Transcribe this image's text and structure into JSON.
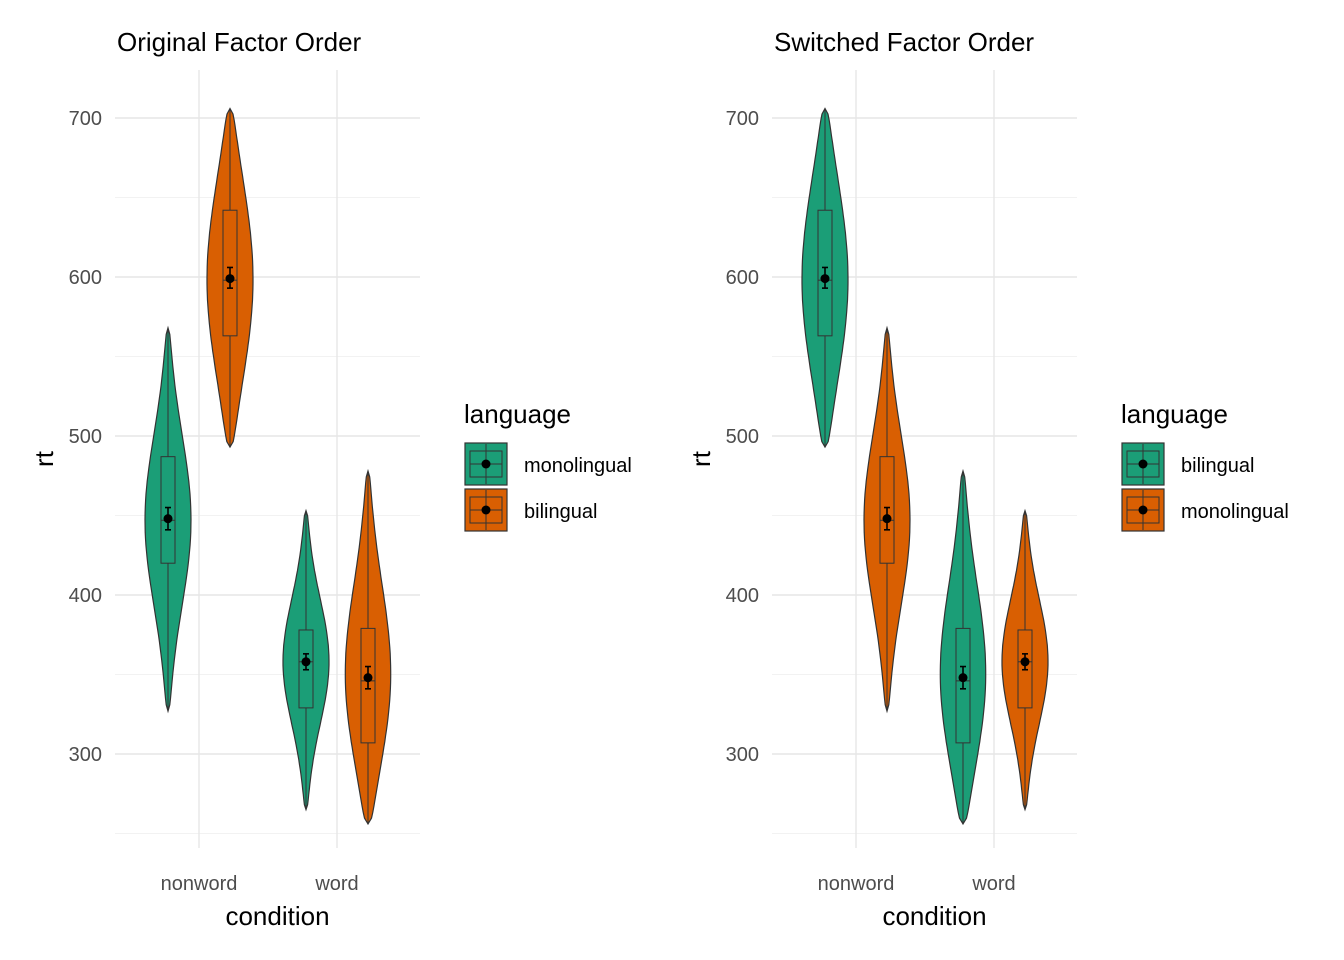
{
  "chart_data": [
    {
      "type": "violin",
      "title": "Original Factor Order",
      "xlabel": "condition",
      "ylabel": "rt",
      "categories": [
        "nonword",
        "word"
      ],
      "yticks": [
        300,
        400,
        500,
        600,
        700
      ],
      "ylim": [
        240,
        720
      ],
      "grid": true,
      "legend": {
        "title": "language",
        "placement": "right",
        "entries": [
          "monolingual",
          "bilingual"
        ]
      },
      "series": [
        {
          "name": "monolingual",
          "color": "#1b9e77",
          "groups": [
            {
              "category": "nonword",
              "min": 327,
              "max": 568,
              "q1": 420,
              "median": 447,
              "q3": 487,
              "mean": 448,
              "ci": [
                441,
                455
              ]
            },
            {
              "category": "word",
              "min": 265,
              "max": 453,
              "q1": 329,
              "median": 358,
              "q3": 378,
              "mean": 358,
              "ci": [
                353,
                363
              ]
            }
          ]
        },
        {
          "name": "bilingual",
          "color": "#d95f02",
          "groups": [
            {
              "category": "nonword",
              "min": 493,
              "max": 706,
              "q1": 563,
              "median": 598,
              "q3": 642,
              "mean": 599,
              "ci": [
                593,
                606
              ]
            },
            {
              "category": "word",
              "min": 256,
              "max": 478,
              "q1": 307,
              "median": 346,
              "q3": 379,
              "mean": 348,
              "ci": [
                341,
                355
              ]
            }
          ]
        }
      ]
    },
    {
      "type": "violin",
      "title": "Switched Factor Order",
      "xlabel": "condition",
      "ylabel": "rt",
      "categories": [
        "nonword",
        "word"
      ],
      "yticks": [
        300,
        400,
        500,
        600,
        700
      ],
      "ylim": [
        240,
        720
      ],
      "grid": true,
      "legend": {
        "title": "language",
        "placement": "right",
        "entries": [
          "bilingual",
          "monolingual"
        ]
      },
      "series": [
        {
          "name": "bilingual",
          "color": "#1b9e77",
          "groups": [
            {
              "category": "nonword",
              "min": 493,
              "max": 706,
              "q1": 563,
              "median": 598,
              "q3": 642,
              "mean": 599,
              "ci": [
                593,
                606
              ]
            },
            {
              "category": "word",
              "min": 256,
              "max": 478,
              "q1": 307,
              "median": 346,
              "q3": 379,
              "mean": 348,
              "ci": [
                341,
                355
              ]
            }
          ]
        },
        {
          "name": "monolingual",
          "color": "#d95f02",
          "groups": [
            {
              "category": "nonword",
              "min": 327,
              "max": 568,
              "q1": 420,
              "median": 447,
              "q3": 487,
              "mean": 448,
              "ci": [
                441,
                455
              ]
            },
            {
              "category": "word",
              "min": 265,
              "max": 453,
              "q1": 329,
              "median": 358,
              "q3": 378,
              "mean": 358,
              "ci": [
                353,
                363
              ]
            }
          ]
        }
      ]
    }
  ]
}
